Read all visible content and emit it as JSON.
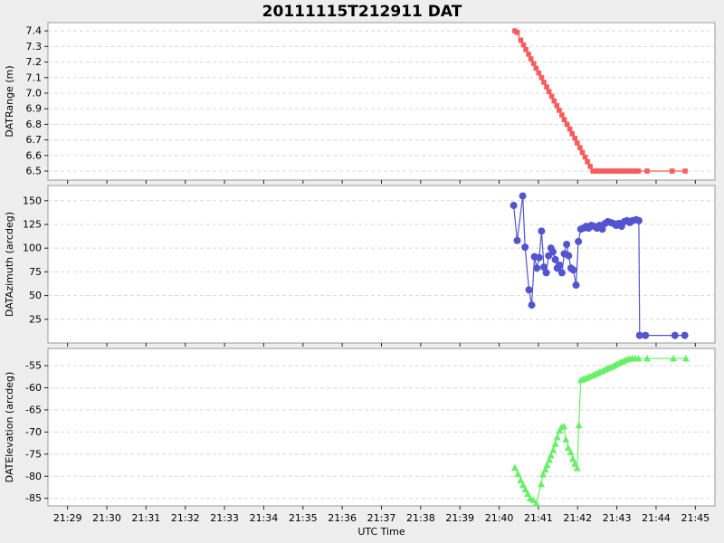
{
  "title": "20111115T212911 DAT",
  "xlabel": "UTC Time",
  "colors": {
    "range": "#fa5c5c",
    "azimuth": "#5254d0",
    "elevation": "#68ef68",
    "grid": "#d8d8d8",
    "border": "#999999",
    "tick": "#222222",
    "figure_bg": "#eeeeee",
    "plot_bg": "#ffffff",
    "text": "#000000"
  },
  "x_axis": {
    "unit": "minutes after 21:00 UTC",
    "lim": [
      28.5,
      45.5
    ],
    "ticks": [
      29,
      30,
      31,
      32,
      33,
      34,
      35,
      36,
      37,
      38,
      39,
      40,
      41,
      42,
      43,
      44,
      45
    ],
    "tick_labels": [
      "21:29",
      "21:30",
      "21:31",
      "21:32",
      "21:33",
      "21:34",
      "21:35",
      "21:36",
      "21:37",
      "21:38",
      "21:39",
      "21:40",
      "21:41",
      "21:42",
      "21:43",
      "21:44",
      "21:45"
    ]
  },
  "chart_data": [
    {
      "type": "line",
      "name": "range",
      "marker": "square",
      "color_key": "range",
      "ylabel": "DATRange (m)",
      "ylim": [
        6.442,
        7.453
      ],
      "yticks": [
        7.4,
        7.3,
        7.2,
        7.1,
        7.0,
        6.9,
        6.8,
        6.7,
        6.6,
        6.5
      ],
      "ytick_labels": [
        "7.4",
        "7.3",
        "7.2",
        "7.1",
        "7.0",
        "6.9",
        "6.8",
        "6.7",
        "6.6",
        "6.5"
      ],
      "grid": true,
      "points": [
        [
          40.4,
          7.4
        ],
        [
          40.46,
          7.39
        ],
        [
          40.55,
          7.34
        ],
        [
          40.62,
          7.31
        ],
        [
          40.68,
          7.28
        ],
        [
          40.75,
          7.25
        ],
        [
          40.81,
          7.22
        ],
        [
          40.88,
          7.19
        ],
        [
          40.94,
          7.16
        ],
        [
          41.01,
          7.13
        ],
        [
          41.08,
          7.1
        ],
        [
          41.14,
          7.07
        ],
        [
          41.21,
          7.04
        ],
        [
          41.27,
          7.01
        ],
        [
          41.34,
          6.98
        ],
        [
          41.4,
          6.95
        ],
        [
          41.47,
          6.92
        ],
        [
          41.53,
          6.89
        ],
        [
          41.6,
          6.86
        ],
        [
          41.66,
          6.83
        ],
        [
          41.73,
          6.8
        ],
        [
          41.8,
          6.77
        ],
        [
          41.86,
          6.74
        ],
        [
          41.93,
          6.71
        ],
        [
          41.99,
          6.68
        ],
        [
          42.06,
          6.65
        ],
        [
          42.12,
          6.62
        ],
        [
          42.19,
          6.59
        ],
        [
          42.25,
          6.56
        ],
        [
          42.32,
          6.53
        ],
        [
          42.39,
          6.5
        ],
        [
          42.45,
          6.5
        ],
        [
          42.51,
          6.5
        ],
        [
          42.57,
          6.5
        ],
        [
          42.63,
          6.5
        ],
        [
          42.7,
          6.5
        ],
        [
          42.76,
          6.5
        ],
        [
          42.82,
          6.5
        ],
        [
          42.88,
          6.5
        ],
        [
          42.94,
          6.5
        ],
        [
          43.0,
          6.5
        ],
        [
          43.06,
          6.5
        ],
        [
          43.12,
          6.5
        ],
        [
          43.18,
          6.5
        ],
        [
          43.24,
          6.5
        ],
        [
          43.3,
          6.5
        ],
        [
          43.37,
          6.5
        ],
        [
          43.43,
          6.5
        ],
        [
          43.49,
          6.5
        ],
        [
          43.55,
          6.5
        ],
        [
          43.77,
          6.5
        ],
        [
          44.41,
          6.5
        ],
        [
          44.74,
          6.5
        ]
      ]
    },
    {
      "type": "line",
      "name": "azimuth",
      "marker": "circle",
      "color_key": "azimuth",
      "ylabel": "DATAzimuth (arcdeg)",
      "ylim": [
        0,
        166
      ],
      "yticks": [
        150,
        125,
        100,
        75,
        50,
        25
      ],
      "ytick_labels": [
        "150",
        "125",
        "100",
        "75",
        "50",
        "25"
      ],
      "grid": true,
      "points": [
        [
          40.37,
          145
        ],
        [
          40.46,
          108
        ],
        [
          40.6,
          155
        ],
        [
          40.66,
          101
        ],
        [
          40.76,
          56
        ],
        [
          40.83,
          40
        ],
        [
          40.9,
          91
        ],
        [
          40.96,
          79
        ],
        [
          41.02,
          90
        ],
        [
          41.08,
          118
        ],
        [
          41.14,
          80
        ],
        [
          41.2,
          74
        ],
        [
          41.26,
          92
        ],
        [
          41.32,
          100
        ],
        [
          41.37,
          96
        ],
        [
          41.43,
          88
        ],
        [
          41.48,
          79
        ],
        [
          41.54,
          82
        ],
        [
          41.6,
          74
        ],
        [
          41.66,
          94
        ],
        [
          41.72,
          104
        ],
        [
          41.77,
          92
        ],
        [
          41.83,
          79
        ],
        [
          41.89,
          77
        ],
        [
          41.96,
          61
        ],
        [
          42.02,
          107
        ],
        [
          42.08,
          120
        ],
        [
          42.15,
          121
        ],
        [
          42.22,
          123
        ],
        [
          42.28,
          121
        ],
        [
          42.35,
          124
        ],
        [
          42.42,
          123
        ],
        [
          42.49,
          121
        ],
        [
          42.56,
          124
        ],
        [
          42.63,
          120
        ],
        [
          42.7,
          126
        ],
        [
          42.77,
          128
        ],
        [
          42.84,
          127
        ],
        [
          42.91,
          126
        ],
        [
          42.98,
          124
        ],
        [
          43.05,
          126
        ],
        [
          43.12,
          123
        ],
        [
          43.19,
          128
        ],
        [
          43.26,
          129
        ],
        [
          43.33,
          127
        ],
        [
          43.4,
          129
        ],
        [
          43.49,
          130
        ],
        [
          43.56,
          129
        ],
        [
          43.58,
          8
        ],
        [
          43.73,
          8
        ],
        [
          44.48,
          8
        ],
        [
          44.73,
          8
        ]
      ]
    },
    {
      "type": "line",
      "name": "elevation",
      "marker": "triangle",
      "color_key": "elevation",
      "ylabel": "DATElevation (arcdeg)",
      "ylim": [
        -86.7,
        -51.1
      ],
      "yticks": [
        -55,
        -60,
        -65,
        -70,
        -75,
        -80,
        -85
      ],
      "ytick_labels": [
        "-55",
        "-60",
        "-65",
        "-70",
        "-75",
        "-80",
        "-85"
      ],
      "grid": true,
      "points": [
        [
          40.4,
          -78.1
        ],
        [
          40.48,
          -79.5
        ],
        [
          40.55,
          -80.9
        ],
        [
          40.61,
          -82.0
        ],
        [
          40.67,
          -83.0
        ],
        [
          40.73,
          -84.0
        ],
        [
          40.79,
          -85.0
        ],
        [
          40.87,
          -85.4
        ],
        [
          40.95,
          -86.2
        ],
        [
          41.07,
          -81.8
        ],
        [
          41.12,
          -79.6
        ],
        [
          41.18,
          -78.5
        ],
        [
          41.22,
          -77.5
        ],
        [
          41.28,
          -76.3
        ],
        [
          41.32,
          -75.3
        ],
        [
          41.38,
          -74.1
        ],
        [
          41.43,
          -72.7
        ],
        [
          41.48,
          -71.2
        ],
        [
          41.54,
          -69.7
        ],
        [
          41.59,
          -68.9
        ],
        [
          41.65,
          -68.7
        ],
        [
          41.7,
          -71.7
        ],
        [
          41.76,
          -73.6
        ],
        [
          41.82,
          -74.6
        ],
        [
          41.88,
          -76.1
        ],
        [
          41.93,
          -77.2
        ],
        [
          41.99,
          -78.2
        ],
        [
          42.03,
          -68.5
        ],
        [
          42.08,
          -58.3
        ],
        [
          42.14,
          -58.1
        ],
        [
          42.2,
          -57.9
        ],
        [
          42.26,
          -57.7
        ],
        [
          42.32,
          -57.4
        ],
        [
          42.39,
          -57.2
        ],
        [
          42.45,
          -56.9
        ],
        [
          42.51,
          -56.7
        ],
        [
          42.57,
          -56.4
        ],
        [
          42.64,
          -56.2
        ],
        [
          42.7,
          -55.9
        ],
        [
          42.76,
          -55.7
        ],
        [
          42.82,
          -55.4
        ],
        [
          42.89,
          -55.2
        ],
        [
          42.95,
          -54.9
        ],
        [
          43.01,
          -54.6
        ],
        [
          43.08,
          -54.3
        ],
        [
          43.14,
          -54.1
        ],
        [
          43.2,
          -53.8
        ],
        [
          43.27,
          -53.6
        ],
        [
          43.33,
          -53.5
        ],
        [
          43.4,
          -53.4
        ],
        [
          43.47,
          -53.4
        ],
        [
          43.55,
          -53.4
        ],
        [
          43.77,
          -53.4
        ],
        [
          44.44,
          -53.4
        ],
        [
          44.76,
          -53.4
        ]
      ]
    }
  ]
}
